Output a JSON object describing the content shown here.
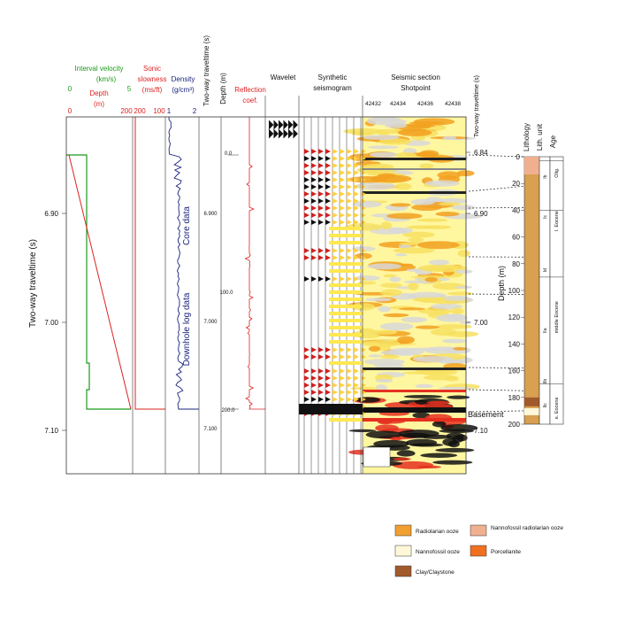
{
  "left_axis": {
    "title": "Two-way traveltime (s)",
    "ticks": [
      "6.90",
      "7.00",
      "7.10"
    ]
  },
  "velocity_panel": {
    "velocity_label": [
      "Interval velocity",
      "(km/s)"
    ],
    "velocity_ticks": [
      "0",
      "5"
    ],
    "depth_label": [
      "Depth",
      "(m)"
    ],
    "depth_ticks": [
      "0",
      "200"
    ]
  },
  "sonic_panel": {
    "label": [
      "Sonic",
      "slowness",
      "(ms/ft)"
    ],
    "ticks": [
      "200",
      "100"
    ]
  },
  "density_panel": {
    "label": [
      "Density",
      "(g/cm³)"
    ],
    "ticks": [
      "1",
      "2"
    ],
    "annotations": [
      "Core data",
      "Downhole log data"
    ]
  },
  "twt_depth_panel": {
    "twt_title": "Two-way traveltime (s)",
    "depth_title": "Depth (m)",
    "twt_ticks": [
      "6.900",
      "7.000",
      "7.100"
    ],
    "depth_ticks": [
      "0.0",
      "100.0",
      "200.0"
    ]
  },
  "reflection_panel": {
    "label": [
      "Reflection",
      "coef."
    ]
  },
  "wavelet_panel": {
    "label": "Wavelet"
  },
  "synthetic_panel": {
    "label": [
      "Synthetic",
      "seismogram"
    ]
  },
  "seismic_panel": {
    "label": [
      "Seismic section",
      "Shotpoint"
    ],
    "shotpoints": [
      "42432",
      "42434",
      "42436",
      "42438"
    ],
    "twt_title": "Two-way traveltime (s)",
    "twt_ticks": [
      "6.84",
      "6.90",
      "7.00",
      "7.10"
    ],
    "basement": "Basement"
  },
  "lithology_panel": {
    "headers": [
      "Lithology",
      "Lith. unit",
      "Age"
    ],
    "depth_title": "Depth (m)",
    "depth_ticks": [
      "0",
      "20",
      "40",
      "60",
      "80",
      "100",
      "120",
      "140",
      "160",
      "180",
      "200"
    ],
    "units": [
      "Ib",
      "Ic",
      "Id",
      "IIa",
      "IIb",
      "IIc"
    ],
    "ages": [
      "Olig.",
      "l. Eocene",
      "middle Eocene",
      "e. Eocene"
    ]
  },
  "legend": [
    "Radiolarian ooze",
    "Nannofossil ooze",
    "Clay/Claystone",
    "Nannofossil radiolarian ooze",
    "Porcellanite"
  ]
}
